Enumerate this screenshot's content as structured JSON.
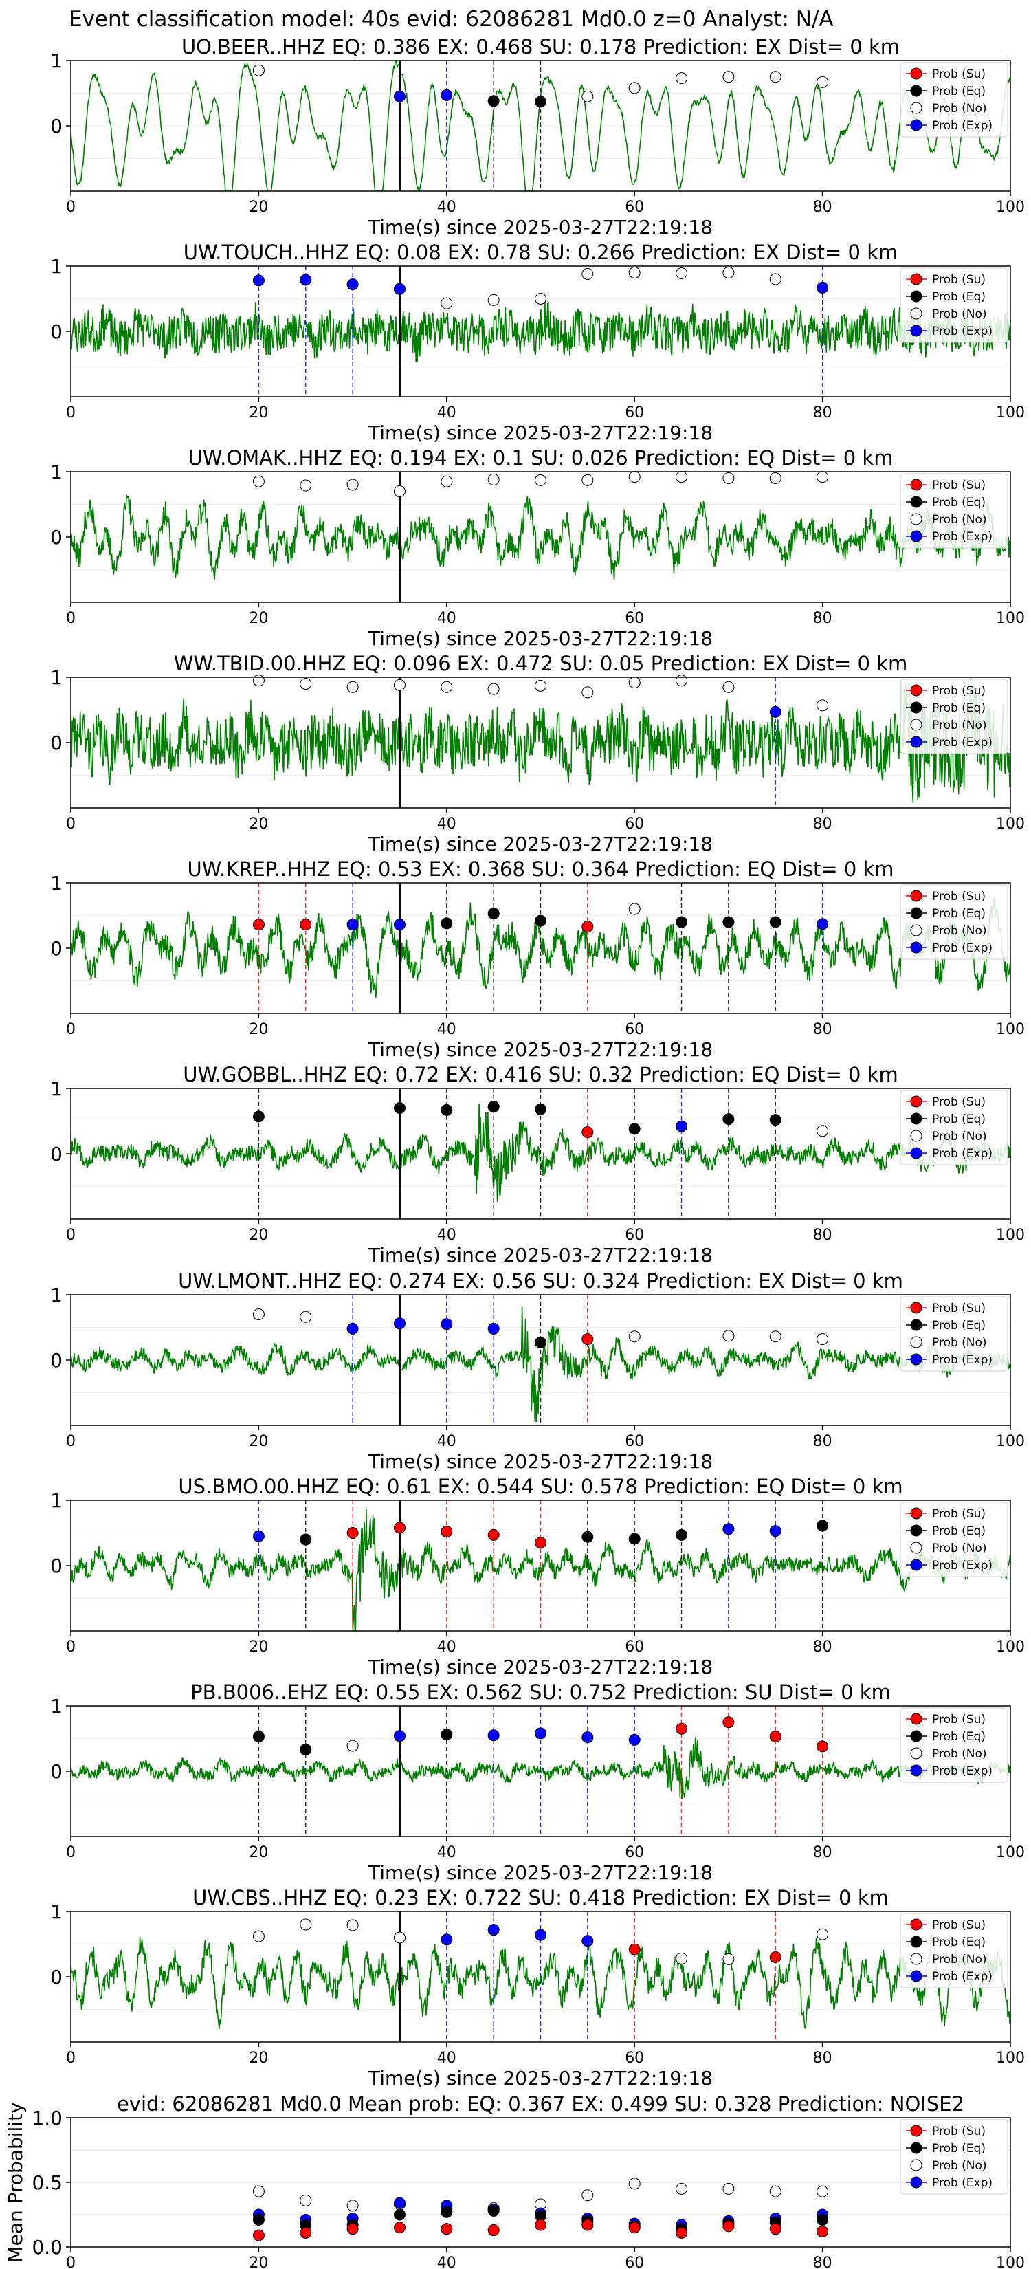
{
  "figure": {
    "suptitle": "Event classification model: 40s evid: 62086281 Md0.0 z=0 Analyst: N/A",
    "xlabel": "Time(s) since 2025-03-27T22:19:18",
    "legend": [
      "Prob (Su)",
      "Prob (Eq)",
      "Prob (No)",
      "Prob (Exp)"
    ],
    "colors": {
      "waveform": "#008000",
      "su": "#ff0000",
      "eq": "#000000",
      "no": "#ffffff",
      "exp": "#0000ff",
      "grid": "#dddddd",
      "origin_line": "#000000"
    },
    "x_ticks": [
      "0",
      "20",
      "40",
      "60",
      "80",
      "100"
    ],
    "y_ticks_station": [
      "1",
      "0"
    ],
    "y_ticks_mean": [
      "1.0",
      "0.5",
      "0.0"
    ],
    "origin_time_s": 35
  },
  "chart_data": [
    {
      "type": "line",
      "title": "UO.BEER..HHZ   EQ: 0.386  EX: 0.468  SU: 0.178   Prediction: EX    Dist= 0 km",
      "waveform": {
        "style": "smooth",
        "amplitude": 0.85,
        "seed": 11
      },
      "points": [
        {
          "t": 20,
          "cls": "no",
          "p": 0.85
        },
        {
          "t": 35,
          "cls": "exp",
          "p": 0.45
        },
        {
          "t": 40,
          "cls": "exp",
          "p": 0.47
        },
        {
          "t": 45,
          "cls": "eq",
          "p": 0.38
        },
        {
          "t": 50,
          "cls": "eq",
          "p": 0.37
        },
        {
          "t": 55,
          "cls": "no",
          "p": 0.45
        },
        {
          "t": 60,
          "cls": "no",
          "p": 0.58
        },
        {
          "t": 65,
          "cls": "no",
          "p": 0.73
        },
        {
          "t": 70,
          "cls": "no",
          "p": 0.75
        },
        {
          "t": 75,
          "cls": "no",
          "p": 0.75
        },
        {
          "t": 80,
          "cls": "no",
          "p": 0.67
        }
      ]
    },
    {
      "type": "line",
      "title": "UW.TOUCH..HHZ   EQ: 0.08  EX: 0.78  SU: 0.266   Prediction: EX    Dist= 0 km",
      "waveform": {
        "style": "noisy",
        "amplitude": 0.4,
        "seed": 23
      },
      "points": [
        {
          "t": 20,
          "cls": "exp",
          "p": 0.78
        },
        {
          "t": 25,
          "cls": "exp",
          "p": 0.79
        },
        {
          "t": 30,
          "cls": "exp",
          "p": 0.72
        },
        {
          "t": 35,
          "cls": "exp",
          "p": 0.65
        },
        {
          "t": 40,
          "cls": "no",
          "p": 0.43
        },
        {
          "t": 45,
          "cls": "no",
          "p": 0.48
        },
        {
          "t": 50,
          "cls": "no",
          "p": 0.5
        },
        {
          "t": 55,
          "cls": "no",
          "p": 0.88
        },
        {
          "t": 60,
          "cls": "no",
          "p": 0.9
        },
        {
          "t": 65,
          "cls": "no",
          "p": 0.89
        },
        {
          "t": 70,
          "cls": "no",
          "p": 0.9
        },
        {
          "t": 75,
          "cls": "no",
          "p": 0.8
        },
        {
          "t": 80,
          "cls": "exp",
          "p": 0.67
        }
      ]
    },
    {
      "type": "line",
      "title": "UW.OMAK..HHZ   EQ: 0.194  EX: 0.1  SU: 0.026   Prediction: EQ    Dist= 0 km",
      "waveform": {
        "style": "mixed",
        "amplitude": 0.55,
        "seed": 37
      },
      "points": [
        {
          "t": 20,
          "cls": "no",
          "p": 0.85
        },
        {
          "t": 25,
          "cls": "no",
          "p": 0.79
        },
        {
          "t": 30,
          "cls": "no",
          "p": 0.8
        },
        {
          "t": 35,
          "cls": "no",
          "p": 0.7
        },
        {
          "t": 40,
          "cls": "no",
          "p": 0.85
        },
        {
          "t": 45,
          "cls": "no",
          "p": 0.88
        },
        {
          "t": 50,
          "cls": "no",
          "p": 0.87
        },
        {
          "t": 55,
          "cls": "no",
          "p": 0.87
        },
        {
          "t": 60,
          "cls": "no",
          "p": 0.92
        },
        {
          "t": 65,
          "cls": "no",
          "p": 0.92
        },
        {
          "t": 70,
          "cls": "no",
          "p": 0.9
        },
        {
          "t": 75,
          "cls": "no",
          "p": 0.9
        },
        {
          "t": 80,
          "cls": "no",
          "p": 0.92
        }
      ]
    },
    {
      "type": "line",
      "title": "WW.TBID.00.HHZ   EQ: 0.096  EX: 0.472  SU: 0.05   Prediction: EX    Dist= 0 km",
      "waveform": {
        "style": "noisy",
        "amplitude": 0.55,
        "seed": 41,
        "burst_at": 88
      },
      "points": [
        {
          "t": 20,
          "cls": "no",
          "p": 0.95
        },
        {
          "t": 25,
          "cls": "no",
          "p": 0.9
        },
        {
          "t": 30,
          "cls": "no",
          "p": 0.85
        },
        {
          "t": 35,
          "cls": "no",
          "p": 0.88
        },
        {
          "t": 40,
          "cls": "no",
          "p": 0.85
        },
        {
          "t": 45,
          "cls": "no",
          "p": 0.82
        },
        {
          "t": 50,
          "cls": "no",
          "p": 0.87
        },
        {
          "t": 55,
          "cls": "no",
          "p": 0.77
        },
        {
          "t": 60,
          "cls": "no",
          "p": 0.92
        },
        {
          "t": 65,
          "cls": "no",
          "p": 0.95
        },
        {
          "t": 70,
          "cls": "no",
          "p": 0.85
        },
        {
          "t": 75,
          "cls": "exp",
          "p": 0.47
        },
        {
          "t": 80,
          "cls": "no",
          "p": 0.57
        }
      ]
    },
    {
      "type": "line",
      "title": "UW.KREP..HHZ   EQ: 0.53  EX: 0.368  SU: 0.364   Prediction: EQ    Dist= 0 km",
      "waveform": {
        "style": "mixed",
        "amplitude": 0.6,
        "seed": 53
      },
      "points": [
        {
          "t": 20,
          "cls": "su",
          "p": 0.36
        },
        {
          "t": 25,
          "cls": "su",
          "p": 0.36
        },
        {
          "t": 30,
          "cls": "exp",
          "p": 0.36
        },
        {
          "t": 35,
          "cls": "exp",
          "p": 0.36
        },
        {
          "t": 40,
          "cls": "eq",
          "p": 0.38
        },
        {
          "t": 45,
          "cls": "eq",
          "p": 0.53
        },
        {
          "t": 50,
          "cls": "eq",
          "p": 0.42
        },
        {
          "t": 55,
          "cls": "su",
          "p": 0.33
        },
        {
          "t": 60,
          "cls": "no",
          "p": 0.6
        },
        {
          "t": 65,
          "cls": "eq",
          "p": 0.4
        },
        {
          "t": 70,
          "cls": "eq",
          "p": 0.4
        },
        {
          "t": 75,
          "cls": "eq",
          "p": 0.4
        },
        {
          "t": 80,
          "cls": "exp",
          "p": 0.37
        }
      ]
    },
    {
      "type": "line",
      "title": "UW.GOBBL..HHZ   EQ: 0.72  EX: 0.416  SU: 0.32   Prediction: EQ    Dist= 0 km",
      "waveform": {
        "style": "event",
        "amplitude": 0.35,
        "seed": 67,
        "event_at": 44
      },
      "points": [
        {
          "t": 20,
          "cls": "eq",
          "p": 0.57
        },
        {
          "t": 35,
          "cls": "eq",
          "p": 0.7
        },
        {
          "t": 40,
          "cls": "eq",
          "p": 0.67
        },
        {
          "t": 45,
          "cls": "eq",
          "p": 0.72
        },
        {
          "t": 50,
          "cls": "eq",
          "p": 0.68
        },
        {
          "t": 55,
          "cls": "su",
          "p": 0.33
        },
        {
          "t": 60,
          "cls": "eq",
          "p": 0.38
        },
        {
          "t": 65,
          "cls": "exp",
          "p": 0.42
        },
        {
          "t": 70,
          "cls": "eq",
          "p": 0.53
        },
        {
          "t": 75,
          "cls": "eq",
          "p": 0.52
        },
        {
          "t": 80,
          "cls": "no",
          "p": 0.35
        }
      ]
    },
    {
      "type": "line",
      "title": "UW.LMONT..HHZ   EQ: 0.274  EX: 0.56  SU: 0.324   Prediction: EX    Dist= 0 km",
      "waveform": {
        "style": "event",
        "amplitude": 0.3,
        "seed": 79,
        "event_at": 49
      },
      "points": [
        {
          "t": 20,
          "cls": "no",
          "p": 0.7
        },
        {
          "t": 25,
          "cls": "no",
          "p": 0.66
        },
        {
          "t": 30,
          "cls": "exp",
          "p": 0.48
        },
        {
          "t": 35,
          "cls": "exp",
          "p": 0.56
        },
        {
          "t": 40,
          "cls": "exp",
          "p": 0.55
        },
        {
          "t": 45,
          "cls": "exp",
          "p": 0.48
        },
        {
          "t": 50,
          "cls": "eq",
          "p": 0.27
        },
        {
          "t": 55,
          "cls": "su",
          "p": 0.32
        },
        {
          "t": 60,
          "cls": "no",
          "p": 0.36
        },
        {
          "t": 70,
          "cls": "no",
          "p": 0.37
        },
        {
          "t": 75,
          "cls": "no",
          "p": 0.36
        },
        {
          "t": 80,
          "cls": "no",
          "p": 0.32
        }
      ]
    },
    {
      "type": "line",
      "title": "US.BMO.00.HHZ   EQ: 0.61  EX: 0.544  SU: 0.578   Prediction: EQ    Dist= 0 km",
      "waveform": {
        "style": "event",
        "amplitude": 0.35,
        "seed": 83,
        "event_at": 31
      },
      "points": [
        {
          "t": 20,
          "cls": "exp",
          "p": 0.45
        },
        {
          "t": 25,
          "cls": "eq",
          "p": 0.4
        },
        {
          "t": 30,
          "cls": "su",
          "p": 0.5
        },
        {
          "t": 35,
          "cls": "su",
          "p": 0.58
        },
        {
          "t": 40,
          "cls": "su",
          "p": 0.52
        },
        {
          "t": 45,
          "cls": "su",
          "p": 0.47
        },
        {
          "t": 50,
          "cls": "su",
          "p": 0.35
        },
        {
          "t": 55,
          "cls": "eq",
          "p": 0.44
        },
        {
          "t": 60,
          "cls": "eq",
          "p": 0.41
        },
        {
          "t": 65,
          "cls": "eq",
          "p": 0.47
        },
        {
          "t": 70,
          "cls": "exp",
          "p": 0.56
        },
        {
          "t": 75,
          "cls": "exp",
          "p": 0.53
        },
        {
          "t": 80,
          "cls": "eq",
          "p": 0.61
        }
      ]
    },
    {
      "type": "line",
      "title": "PB.B006..EHZ   EQ: 0.55  EX: 0.562  SU: 0.752   Prediction: SU    Dist= 0 km",
      "waveform": {
        "style": "event",
        "amplitude": 0.25,
        "seed": 97,
        "event_at": 64
      },
      "points": [
        {
          "t": 20,
          "cls": "eq",
          "p": 0.53
        },
        {
          "t": 25,
          "cls": "eq",
          "p": 0.33
        },
        {
          "t": 30,
          "cls": "no",
          "p": 0.39
        },
        {
          "t": 35,
          "cls": "exp",
          "p": 0.54
        },
        {
          "t": 40,
          "cls": "eq",
          "p": 0.56
        },
        {
          "t": 45,
          "cls": "exp",
          "p": 0.55
        },
        {
          "t": 50,
          "cls": "exp",
          "p": 0.58
        },
        {
          "t": 55,
          "cls": "exp",
          "p": 0.52
        },
        {
          "t": 60,
          "cls": "exp",
          "p": 0.48
        },
        {
          "t": 65,
          "cls": "su",
          "p": 0.65
        },
        {
          "t": 70,
          "cls": "su",
          "p": 0.75
        },
        {
          "t": 75,
          "cls": "su",
          "p": 0.53
        },
        {
          "t": 80,
          "cls": "su",
          "p": 0.38
        }
      ]
    },
    {
      "type": "line",
      "title": "UW.CBS..HHZ   EQ: 0.23  EX: 0.722  SU: 0.418   Prediction: EX    Dist= 0 km",
      "waveform": {
        "style": "mixed",
        "amplitude": 0.5,
        "seed": 101
      },
      "points": [
        {
          "t": 20,
          "cls": "no",
          "p": 0.62
        },
        {
          "t": 25,
          "cls": "no",
          "p": 0.8
        },
        {
          "t": 30,
          "cls": "no",
          "p": 0.79
        },
        {
          "t": 35,
          "cls": "no",
          "p": 0.6
        },
        {
          "t": 40,
          "cls": "exp",
          "p": 0.57
        },
        {
          "t": 45,
          "cls": "exp",
          "p": 0.72
        },
        {
          "t": 50,
          "cls": "exp",
          "p": 0.64
        },
        {
          "t": 55,
          "cls": "exp",
          "p": 0.55
        },
        {
          "t": 60,
          "cls": "su",
          "p": 0.42
        },
        {
          "t": 65,
          "cls": "no",
          "p": 0.28
        },
        {
          "t": 70,
          "cls": "no",
          "p": 0.27
        },
        {
          "t": 75,
          "cls": "su",
          "p": 0.3
        },
        {
          "t": 80,
          "cls": "no",
          "p": 0.65
        }
      ]
    },
    {
      "type": "scatter",
      "title": "evid: 62086281  Md0.0   Mean prob:   EQ: 0.367  EX: 0.499  SU: 0.328   Prediction: NOISE2",
      "ylabel": "Mean Probability",
      "ylim": [
        0,
        1
      ],
      "t": [
        20,
        25,
        30,
        35,
        40,
        45,
        50,
        55,
        60,
        65,
        70,
        75,
        80
      ],
      "series": {
        "no": [
          0.43,
          0.36,
          0.32,
          0.33,
          0.29,
          0.3,
          0.33,
          0.4,
          0.49,
          0.45,
          0.45,
          0.43,
          0.43
        ],
        "exp": [
          0.25,
          0.21,
          0.22,
          0.34,
          0.32,
          0.29,
          0.26,
          0.22,
          0.18,
          0.17,
          0.2,
          0.22,
          0.25
        ],
        "eq": [
          0.21,
          0.17,
          0.17,
          0.25,
          0.27,
          0.28,
          0.24,
          0.2,
          0.16,
          0.14,
          0.18,
          0.19,
          0.21
        ],
        "su": [
          0.09,
          0.11,
          0.14,
          0.15,
          0.14,
          0.13,
          0.17,
          0.17,
          0.15,
          0.11,
          0.16,
          0.14,
          0.12
        ]
      }
    }
  ]
}
